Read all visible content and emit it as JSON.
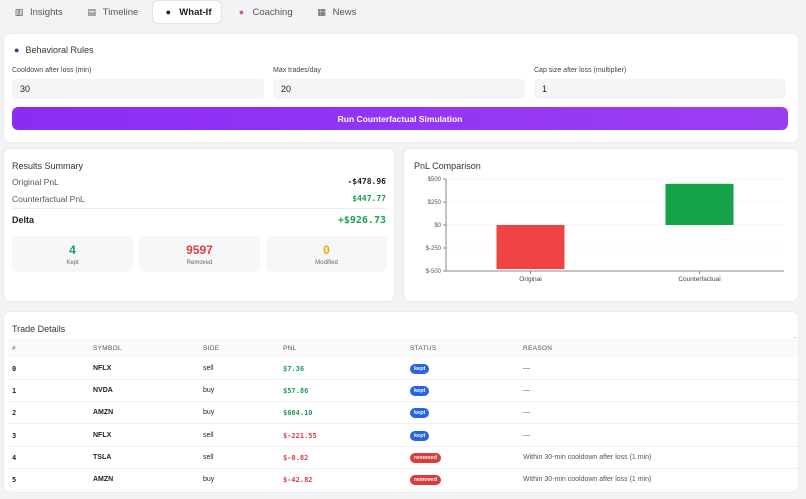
{
  "tabs": [
    {
      "label": "Insights",
      "icon": "bar-chart-icon",
      "active": false
    },
    {
      "label": "Timeline",
      "icon": "clipboard-icon",
      "active": false
    },
    {
      "label": "What-If",
      "icon": "crystal-ball-icon",
      "active": true
    },
    {
      "label": "Coaching",
      "icon": "brain-icon",
      "active": false
    },
    {
      "label": "News",
      "icon": "newspaper-icon",
      "active": false
    }
  ],
  "rules": {
    "title": "Behavioral Rules",
    "cooldown_label": "Cooldown after loss (min)",
    "cooldown_value": "30",
    "max_trades_label": "Max trades/day",
    "max_trades_value": "20",
    "cap_label": "Cap size after loss (multiplier)",
    "cap_value": "1",
    "run_label": "Run Counterfactual Simulation"
  },
  "results": {
    "title": "Results Summary",
    "original_label": "Original PnL",
    "original_value": "-$478.96",
    "counterfactual_label": "Counterfactual PnL",
    "counterfactual_value": "$447.77",
    "delta_label": "Delta",
    "delta_value": "+$926.73",
    "kept_value": "4",
    "kept_label": "Kept",
    "removed_value": "9597",
    "removed_label": "Removed",
    "modified_value": "0",
    "modified_label": "Modified",
    "colors": {
      "kept": "#18a058",
      "removed": "#dc3c3c",
      "modified": "#f0a500"
    }
  },
  "chart": {
    "title": "PnL Comparison"
  },
  "chart_data": {
    "type": "bar",
    "categories": [
      "Original",
      "Counterfactual"
    ],
    "values": [
      -478.96,
      447.77
    ],
    "colors": [
      "#f04444",
      "#16a34a"
    ],
    "title": "PnL Comparison",
    "xlabel": "",
    "ylabel": "",
    "ylim": [
      -500,
      500
    ],
    "yticks": [
      500,
      250,
      0,
      -250,
      -500
    ],
    "ytick_labels": [
      "$500",
      "$250",
      "$0",
      "$-250",
      "$-500"
    ],
    "grid": true
  },
  "trades": {
    "title": "Trade Details",
    "headers": [
      "#",
      "SYMBOL",
      "SIDE",
      "PNL",
      "STATUS",
      "REASON"
    ],
    "rows": [
      {
        "id": "0",
        "symbol": "NFLX",
        "side": "sell",
        "pnl": "$7.36",
        "status": "kept",
        "reason": "—"
      },
      {
        "id": "1",
        "symbol": "NVDA",
        "side": "buy",
        "pnl": "$57.86",
        "status": "kept",
        "reason": "—"
      },
      {
        "id": "2",
        "symbol": "AMZN",
        "side": "buy",
        "pnl": "$604.10",
        "status": "kept",
        "reason": "—"
      },
      {
        "id": "3",
        "symbol": "NFLX",
        "side": "sell",
        "pnl": "$-221.55",
        "status": "kept",
        "reason": "—"
      },
      {
        "id": "4",
        "symbol": "TSLA",
        "side": "sell",
        "pnl": "$-0.82",
        "status": "removed",
        "reason": "Within 30-min cooldown after loss (1 min)"
      },
      {
        "id": "5",
        "symbol": "AMZN",
        "side": "buy",
        "pnl": "$-42.82",
        "status": "removed",
        "reason": "Within 30-min cooldown after loss (1 min)"
      }
    ]
  }
}
